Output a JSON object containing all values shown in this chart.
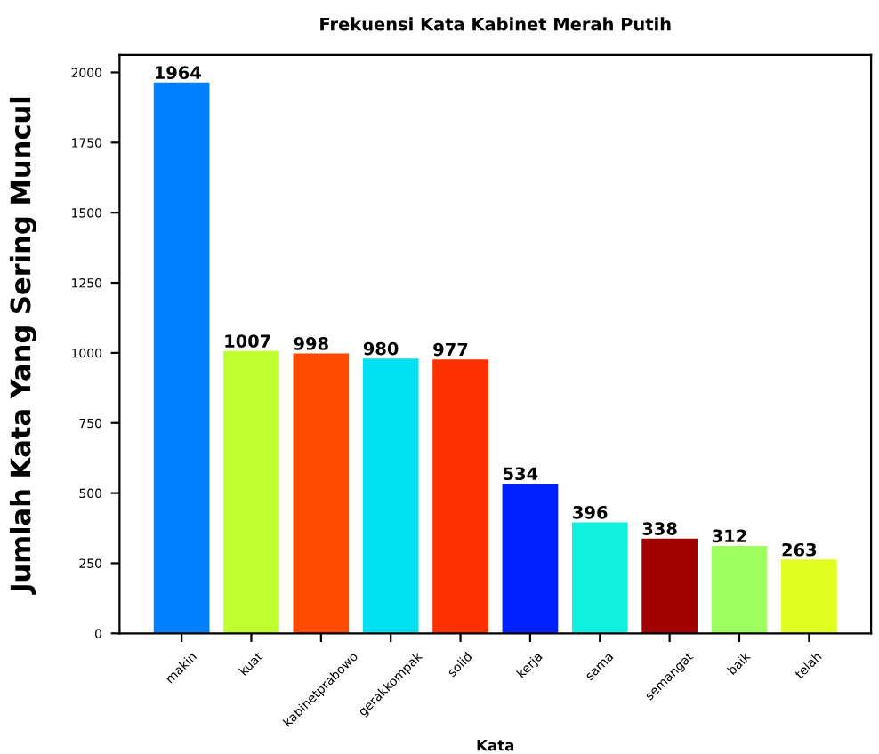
{
  "chart_data": {
    "type": "bar",
    "title": "Frekuensi Kata Kabinet Merah Putih",
    "xlabel": "Kata",
    "ylabel": "Jumlah Kata Yang Sering Muncul",
    "categories": [
      "makin",
      "kuat",
      "kabinetprabowo",
      "gerakkompak",
      "solid",
      "kerja",
      "sama",
      "semangat",
      "baik",
      "telah"
    ],
    "values": [
      1964,
      1007,
      998,
      980,
      977,
      534,
      396,
      338,
      312,
      263
    ],
    "colors": [
      "#0080ff",
      "#c0ff30",
      "#ff4a00",
      "#00e0f0",
      "#ff3000",
      "#0020ff",
      "#10f0e0",
      "#a00000",
      "#a0ff60",
      "#e0ff20"
    ],
    "ylim": [
      0,
      2062
    ],
    "yticks": [
      0,
      250,
      500,
      750,
      1000,
      1250,
      1500,
      1750,
      2000
    ],
    "data_labels": true,
    "grid": false,
    "legend": false
  }
}
